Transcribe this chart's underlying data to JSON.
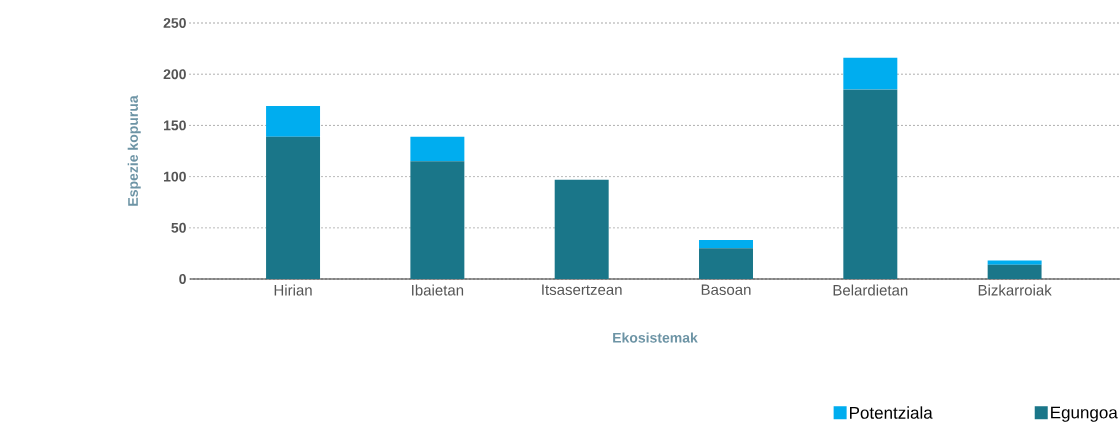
{
  "chart_data": {
    "type": "bar",
    "stacked": true,
    "xlabel": "Ekosistemak",
    "ylabel": "Espezie kopurua",
    "categories": [
      "Hirian",
      "Ibaietan",
      "Itsasertzean",
      "Basoan",
      "Belardietan",
      "Bizkarroiak"
    ],
    "series": [
      {
        "name": "Egungoa",
        "color": "#1a7689",
        "values": [
          139,
          115,
          97,
          30,
          185,
          14
        ]
      },
      {
        "name": "Potentziala",
        "color": "#00adef",
        "values": [
          30,
          24,
          0,
          8,
          31,
          4
        ]
      }
    ],
    "ylim": [
      0,
      250
    ],
    "yticks": [
      0,
      50,
      100,
      150,
      200,
      250
    ],
    "grid": "y",
    "legend": "bottom right"
  }
}
